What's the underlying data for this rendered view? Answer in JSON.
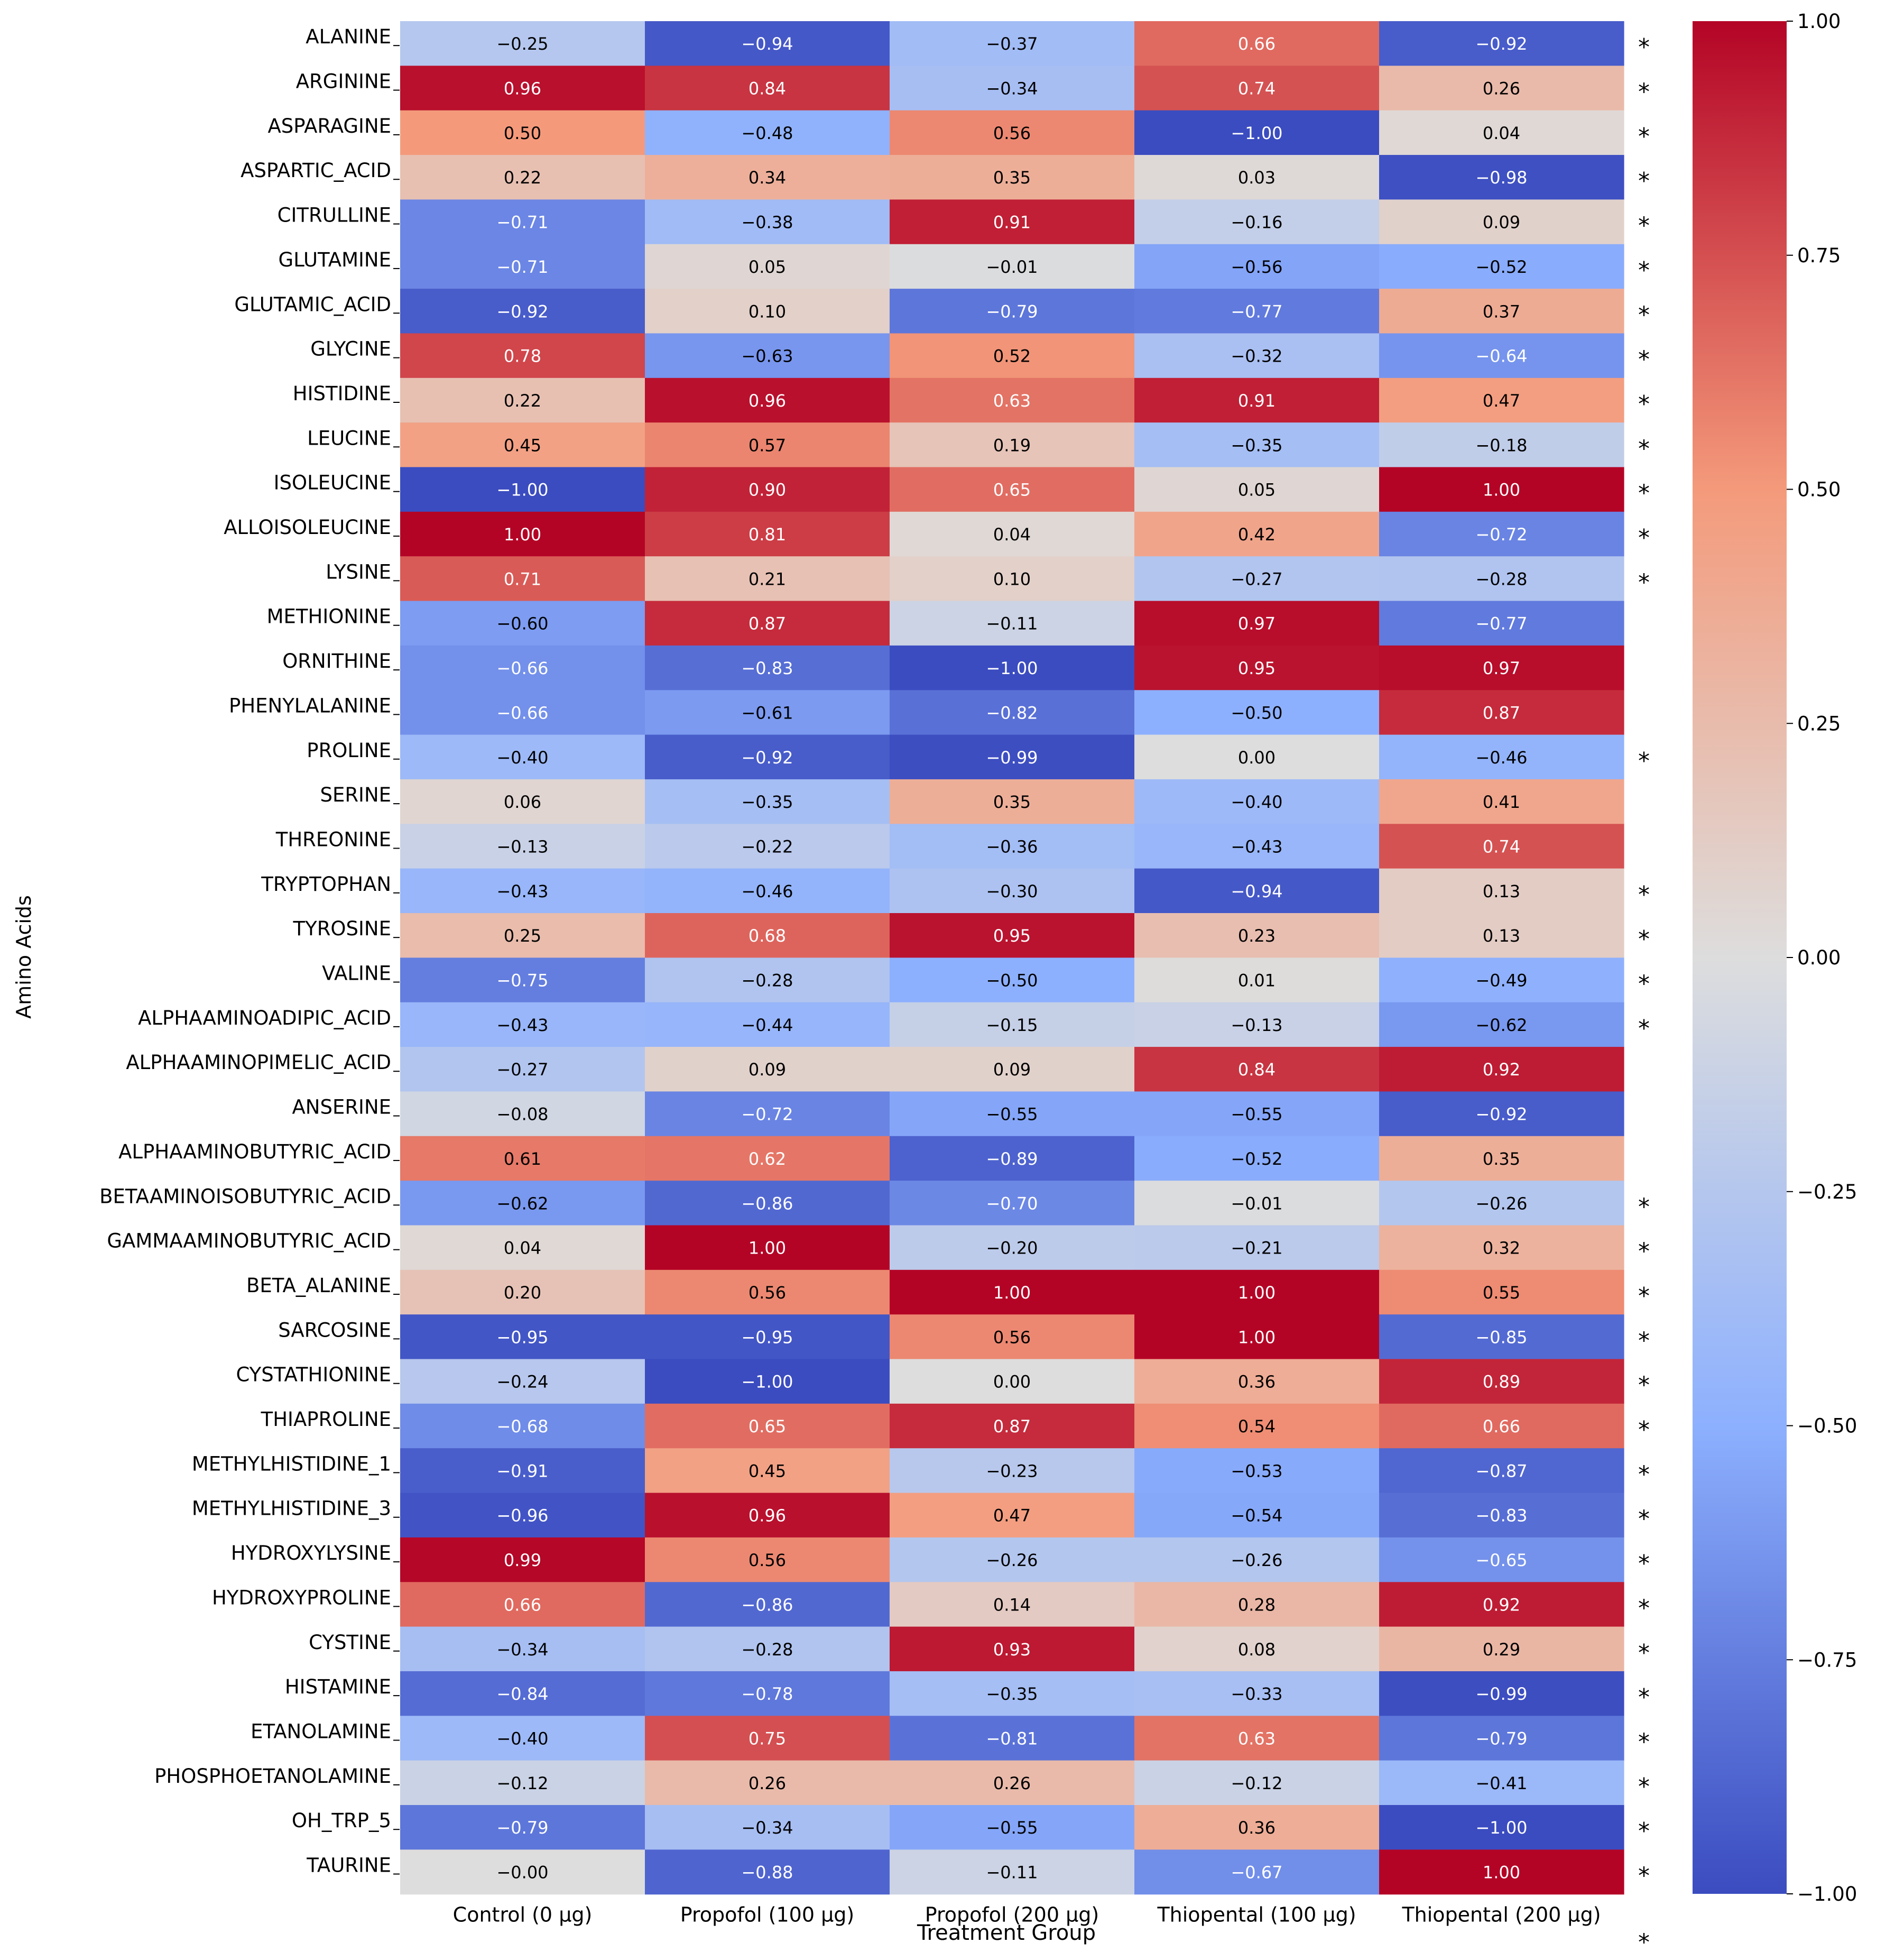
{
  "chart_data": {
    "type": "heatmap",
    "title": "",
    "xlabel": "Treatment Group",
    "ylabel": "Amino Acids",
    "columns": [
      "Control (0 μg)",
      "Propofol (100 μg)",
      "Propofol (200 μg)",
      "Thiopental (100 μg)",
      "Thiopental (200 μg)"
    ],
    "rows": [
      {
        "name": "ALANINE",
        "values": [
          -0.25,
          -0.94,
          -0.37,
          0.66,
          -0.92
        ],
        "star": true
      },
      {
        "name": "ARGININE",
        "values": [
          0.96,
          0.84,
          -0.34,
          0.74,
          0.26
        ],
        "star": true
      },
      {
        "name": "ASPARAGINE",
        "values": [
          0.5,
          -0.48,
          0.56,
          -1.0,
          0.04
        ],
        "star": true
      },
      {
        "name": "ASPARTIC_ACID",
        "values": [
          0.22,
          0.34,
          0.35,
          0.03,
          -0.98
        ],
        "star": true
      },
      {
        "name": "CITRULLINE",
        "values": [
          -0.71,
          -0.38,
          0.91,
          -0.16,
          0.09
        ],
        "star": true
      },
      {
        "name": "GLUTAMINE",
        "values": [
          -0.71,
          0.05,
          -0.01,
          -0.56,
          -0.52
        ],
        "star": true
      },
      {
        "name": "GLUTAMIC_ACID",
        "values": [
          -0.92,
          0.1,
          -0.79,
          -0.77,
          0.37
        ],
        "star": true
      },
      {
        "name": "GLYCINE",
        "values": [
          0.78,
          -0.63,
          0.52,
          -0.32,
          -0.64
        ],
        "star": true
      },
      {
        "name": "HISTIDINE",
        "values": [
          0.22,
          0.96,
          0.63,
          0.91,
          0.47
        ],
        "star": true
      },
      {
        "name": "LEUCINE",
        "values": [
          0.45,
          0.57,
          0.19,
          -0.35,
          -0.18
        ],
        "star": true
      },
      {
        "name": "ISOLEUCINE",
        "values": [
          -1.0,
          0.9,
          0.65,
          0.05,
          1.0
        ],
        "star": true
      },
      {
        "name": "ALLOISOLEUCINE",
        "values": [
          1.0,
          0.81,
          0.04,
          0.42,
          -0.72
        ],
        "star": true
      },
      {
        "name": "LYSINE",
        "values": [
          0.71,
          0.21,
          0.1,
          -0.27,
          -0.28
        ],
        "star": true
      },
      {
        "name": "METHIONINE",
        "values": [
          -0.6,
          0.87,
          -0.11,
          0.97,
          -0.77
        ],
        "star": false
      },
      {
        "name": "ORNITHINE",
        "values": [
          -0.66,
          -0.83,
          -1.0,
          0.95,
          0.97
        ],
        "star": false
      },
      {
        "name": "PHENYLALANINE",
        "values": [
          -0.66,
          -0.61,
          -0.82,
          -0.5,
          0.87
        ],
        "star": false
      },
      {
        "name": "PROLINE",
        "values": [
          -0.4,
          -0.92,
          -0.99,
          0.0,
          -0.46
        ],
        "star": true
      },
      {
        "name": "SERINE",
        "values": [
          0.06,
          -0.35,
          0.35,
          -0.4,
          0.41
        ],
        "star": false
      },
      {
        "name": "THREONINE",
        "values": [
          -0.13,
          -0.22,
          -0.36,
          -0.43,
          0.74
        ],
        "star": false
      },
      {
        "name": "TRYPTOPHAN",
        "values": [
          -0.43,
          -0.46,
          -0.3,
          -0.94,
          0.13
        ],
        "star": true
      },
      {
        "name": "TYROSINE",
        "values": [
          0.25,
          0.68,
          0.95,
          0.23,
          0.13
        ],
        "star": true
      },
      {
        "name": "VALINE",
        "values": [
          -0.75,
          -0.28,
          -0.5,
          0.01,
          -0.49
        ],
        "star": true
      },
      {
        "name": "ALPHAAMINOADIPIC_ACID",
        "values": [
          -0.43,
          -0.44,
          -0.15,
          -0.13,
          -0.62
        ],
        "star": true
      },
      {
        "name": "ALPHAAMINOPIMELIC_ACID",
        "values": [
          -0.27,
          0.09,
          0.09,
          0.84,
          0.92
        ],
        "star": false
      },
      {
        "name": "ANSERINE",
        "values": [
          -0.08,
          -0.72,
          -0.55,
          -0.55,
          -0.92
        ],
        "star": false
      },
      {
        "name": "ALPHAAMINOBUTYRIC_ACID",
        "values": [
          0.61,
          0.62,
          -0.89,
          -0.52,
          0.35
        ],
        "star": false
      },
      {
        "name": "BETAAMINOISOBUTYRIC_ACID",
        "values": [
          -0.62,
          -0.86,
          -0.7,
          -0.01,
          -0.26
        ],
        "star": true
      },
      {
        "name": "GAMMAAMINOBUTYRIC_ACID",
        "values": [
          0.04,
          1.0,
          -0.2,
          -0.21,
          0.32
        ],
        "star": true
      },
      {
        "name": "BETA_ALANINE",
        "values": [
          0.2,
          0.56,
          1.0,
          1.0,
          0.55
        ],
        "star": true
      },
      {
        "name": "SARCOSINE",
        "values": [
          -0.95,
          -0.95,
          0.56,
          1.0,
          -0.85
        ],
        "star": true
      },
      {
        "name": "CYSTATHIONINE",
        "values": [
          -0.24,
          -1.0,
          0.0,
          0.36,
          0.89
        ],
        "star": true
      },
      {
        "name": "THIAPROLINE",
        "values": [
          -0.68,
          0.65,
          0.87,
          0.54,
          0.66
        ],
        "star": true
      },
      {
        "name": "METHYLHISTIDINE_1",
        "values": [
          -0.91,
          0.45,
          -0.23,
          -0.53,
          -0.87
        ],
        "star": true
      },
      {
        "name": "METHYLHISTIDINE_3",
        "values": [
          -0.96,
          0.96,
          0.47,
          -0.54,
          -0.83
        ],
        "star": true
      },
      {
        "name": "HYDROXYLYSINE",
        "values": [
          0.99,
          0.56,
          -0.26,
          -0.26,
          -0.65
        ],
        "star": true
      },
      {
        "name": "HYDROXYPROLINE",
        "values": [
          0.66,
          -0.86,
          0.14,
          0.28,
          0.92
        ],
        "star": true
      },
      {
        "name": "CYSTINE",
        "values": [
          -0.34,
          -0.28,
          0.93,
          0.08,
          0.29
        ],
        "star": true
      },
      {
        "name": "HISTAMINE",
        "values": [
          -0.84,
          -0.78,
          -0.35,
          -0.33,
          -0.99
        ],
        "star": true
      },
      {
        "name": "ETANOLAMINE",
        "values": [
          -0.4,
          0.75,
          -0.81,
          0.63,
          -0.79
        ],
        "star": true
      },
      {
        "name": "PHOSPHOETANOLAMINE",
        "values": [
          -0.12,
          0.26,
          0.26,
          -0.12,
          -0.41
        ],
        "star": true
      },
      {
        "name": "OH_TRP_5",
        "values": [
          -0.79,
          -0.34,
          -0.55,
          0.36,
          -1.0
        ],
        "star": true
      },
      {
        "name": "TAURINE",
        "values": [
          -0.0,
          -0.88,
          -0.11,
          -0.67,
          1.0
        ],
        "star": true
      }
    ],
    "trailing_star": true,
    "star_symbol": "*",
    "colorbar": {
      "min": -1.0,
      "max": 1.0,
      "ticks": [
        1.0,
        0.75,
        0.5,
        0.25,
        0.0,
        -0.25,
        -0.5,
        -0.75,
        -1.0
      ],
      "tick_labels": [
        "1.00",
        "0.75",
        "0.50",
        "0.25",
        "0.00",
        "−0.25",
        "−0.50",
        "−0.75",
        "−1.00"
      ],
      "colormap": "coolwarm",
      "stops": [
        {
          "v": -1.0,
          "color": "#3b4cc0"
        },
        {
          "v": -0.5,
          "color": "#8db0fe"
        },
        {
          "v": 0.0,
          "color": "#dddddd"
        },
        {
          "v": 0.5,
          "color": "#f49a7b"
        },
        {
          "v": 1.0,
          "color": "#b40426"
        }
      ]
    }
  }
}
